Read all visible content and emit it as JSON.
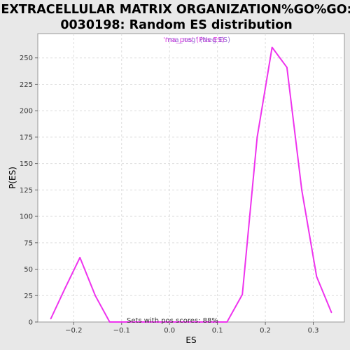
{
  "chart_data": {
    "type": "line",
    "title_line1": "EXTRACELLULAR MATRIX ORGANIZATION%GO%GO:",
    "title_line2": "0030198: Random ES distribution",
    "xlabel": "ES",
    "ylabel": "P(ES)",
    "xlim": [
      -0.275,
      0.365
    ],
    "ylim": [
      0,
      273
    ],
    "xticks": [
      -0.2,
      -0.1,
      0.0,
      0.1,
      0.2,
      0.3
    ],
    "xtick_labels": [
      "−0.2",
      "−0.1",
      "0.0",
      "0.1",
      "0.2",
      "0.3"
    ],
    "yticks": [
      0,
      25,
      50,
      75,
      100,
      125,
      150,
      175,
      200,
      225,
      250
    ],
    "ytick_labels": [
      "0",
      "25",
      "50",
      "75",
      "100",
      "125",
      "150",
      "175",
      "200",
      "225",
      "250"
    ],
    "grid": true,
    "legend": {
      "placement": "top-center",
      "entries": [
        "'ma_pos' (Pos ES)",
        "'ma_neg' (Neg ES)"
      ],
      "colors": [
        "#e040e0",
        "#8855cc"
      ]
    },
    "annotation": "Sets with pos scores: 88%",
    "series": [
      {
        "color": "#ee33ee",
        "x": [
          -0.248,
          -0.218,
          -0.187,
          -0.155,
          -0.125,
          -0.095,
          -0.065,
          -0.035,
          -0.005,
          0.025,
          0.055,
          0.085,
          0.12,
          0.152,
          0.183,
          0.214,
          0.245,
          0.276,
          0.307,
          0.338
        ],
        "y": [
          3,
          32,
          61,
          25,
          0,
          0,
          0,
          0,
          0,
          0,
          0,
          0,
          0,
          26,
          175,
          260,
          241,
          125,
          43,
          9
        ]
      }
    ]
  }
}
